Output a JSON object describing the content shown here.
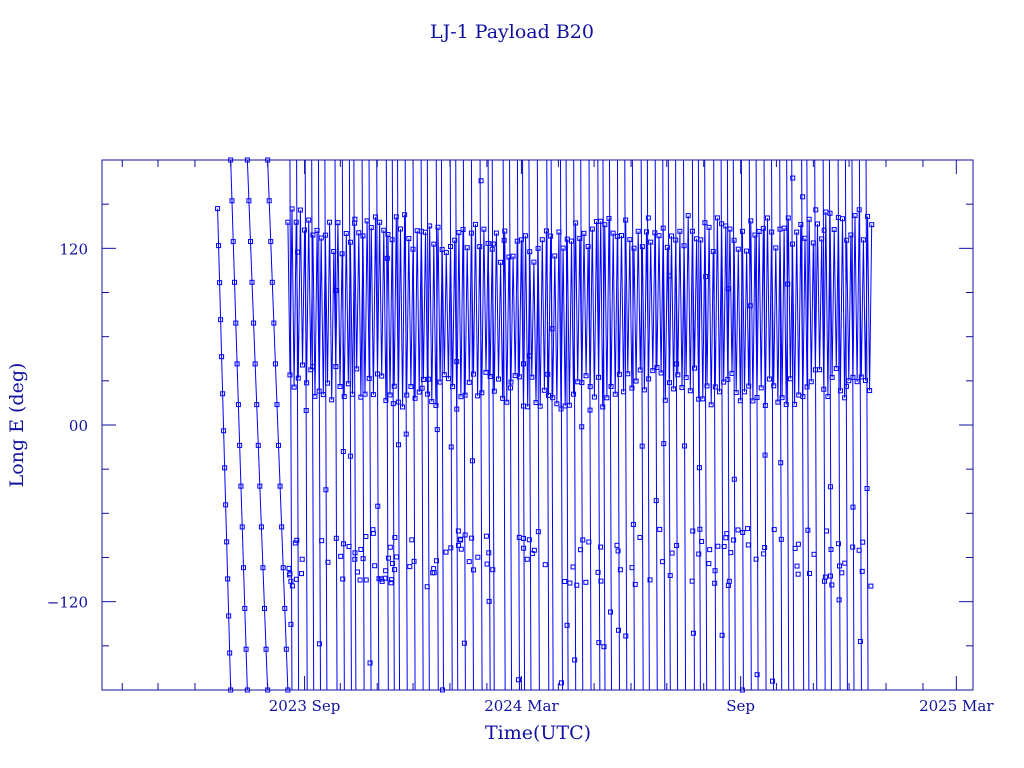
{
  "chart_data": {
    "type": "line",
    "title": "LJ-1 Payload B20",
    "xlabel": "Time(UTC)",
    "ylabel": "Long E (deg)",
    "x_ticks": [
      {
        "date": "2023-09-01",
        "label": "2023 Sep"
      },
      {
        "date": "2024-03-01",
        "label": "2024 Mar"
      },
      {
        "date": "2024-09-01",
        "label": "Sep"
      },
      {
        "date": "2025-03-01",
        "label": "2025 Mar"
      }
    ],
    "y_ticks": [
      {
        "value": 120,
        "label": "120"
      },
      {
        "value": 0,
        "label": "00"
      },
      {
        "value": -120,
        "label": "−120"
      }
    ],
    "xlim": [
      "2023-03-15",
      "2025-03-15"
    ],
    "ylim": [
      -180,
      180
    ],
    "grid": false,
    "series": [
      {
        "color": "#0000ff",
        "markers": "square",
        "segments": [
          {
            "start": "2023-06-20",
            "end": "2023-07-01",
            "y_start": 147,
            "y_end": -180
          },
          {
            "start": "2023-07-01",
            "end": "2023-07-15",
            "y_start": 180,
            "y_end": -180
          },
          {
            "start": "2023-07-15",
            "end": "2023-08-01",
            "y_start": 180,
            "y_end": -180
          },
          {
            "start": "2023-08-01",
            "end": "2023-08-18",
            "y_start": 180,
            "y_end": -180
          }
        ],
        "dense_band": {
          "start": "2023-08-18",
          "end": "2024-12-20",
          "upper": [
            {
              "date": "2023-08-20",
              "value": 150
            },
            {
              "date": "2023-10-01",
              "value": 140
            },
            {
              "date": "2023-11-15",
              "value": 145
            },
            {
              "date": "2024-01-01",
              "value": 140
            },
            {
              "date": "2024-03-01",
              "value": 130
            },
            {
              "date": "2024-05-01",
              "value": 140
            },
            {
              "date": "2024-07-01",
              "value": 145
            },
            {
              "date": "2024-09-01",
              "value": 140
            },
            {
              "date": "2024-12-15",
              "value": 150
            }
          ],
          "lower": [
            {
              "date": "2023-08-20",
              "value": 20
            },
            {
              "date": "2023-10-01",
              "value": 15
            },
            {
              "date": "2023-11-15",
              "value": 10
            },
            {
              "date": "2024-01-01",
              "value": 10
            },
            {
              "date": "2024-03-01",
              "value": 12
            },
            {
              "date": "2024-05-01",
              "value": 10
            },
            {
              "date": "2024-07-01",
              "value": 15
            },
            {
              "date": "2024-09-01",
              "value": 12
            },
            {
              "date": "2024-12-15",
              "value": 15
            }
          ],
          "secondary_cluster": {
            "y_min": -110,
            "y_max": -70
          }
        }
      }
    ]
  }
}
